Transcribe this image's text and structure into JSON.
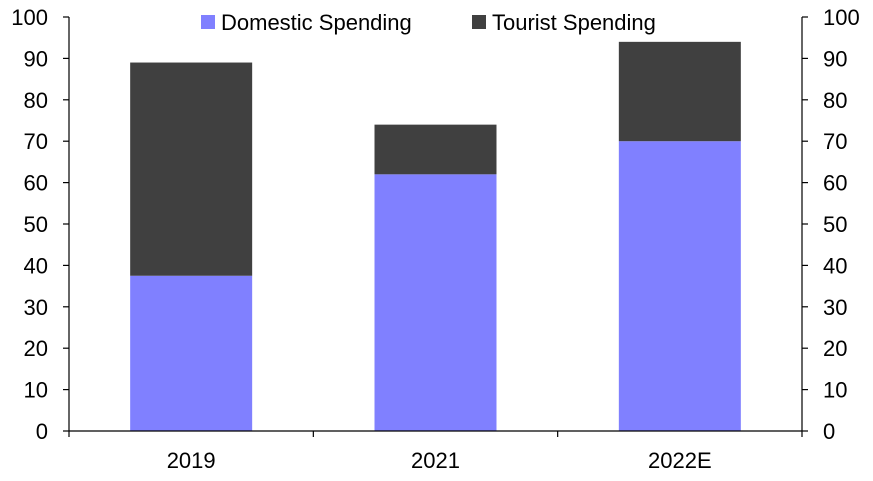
{
  "chart_data": {
    "type": "bar",
    "stacked": true,
    "categories": [
      "2019",
      "2021",
      "2022E"
    ],
    "series": [
      {
        "name": "Domestic Spending",
        "values": [
          37.5,
          62,
          70
        ],
        "color": "#8080ff"
      },
      {
        "name": "Tourist Spending",
        "values": [
          51.5,
          12,
          24
        ],
        "color": "#404040"
      }
    ],
    "ylim": [
      0,
      100
    ],
    "yticks": [
      0,
      10,
      20,
      30,
      40,
      50,
      60,
      70,
      80,
      90,
      100
    ],
    "ytick_labels": [
      "0",
      "10",
      "20",
      "30",
      "40",
      "50",
      "60",
      "70",
      "80",
      "90",
      "100"
    ],
    "secondary_axis": true,
    "legend": "top",
    "grid": false
  }
}
